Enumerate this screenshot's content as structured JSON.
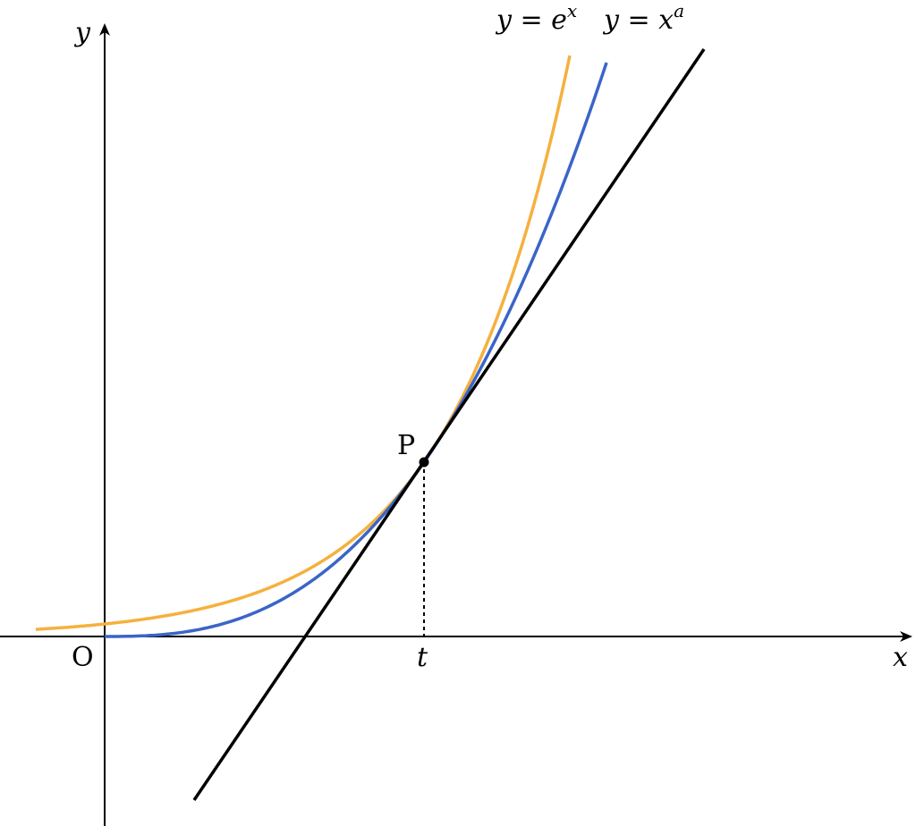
{
  "axes": {
    "x_label": "x",
    "y_label": "y",
    "origin_label": "O",
    "t_label": "t"
  },
  "point": {
    "label": "P"
  },
  "curves": [
    {
      "base": "y = e",
      "exponent": "x"
    },
    {
      "base": "y = x",
      "exponent": "a"
    }
  ]
}
